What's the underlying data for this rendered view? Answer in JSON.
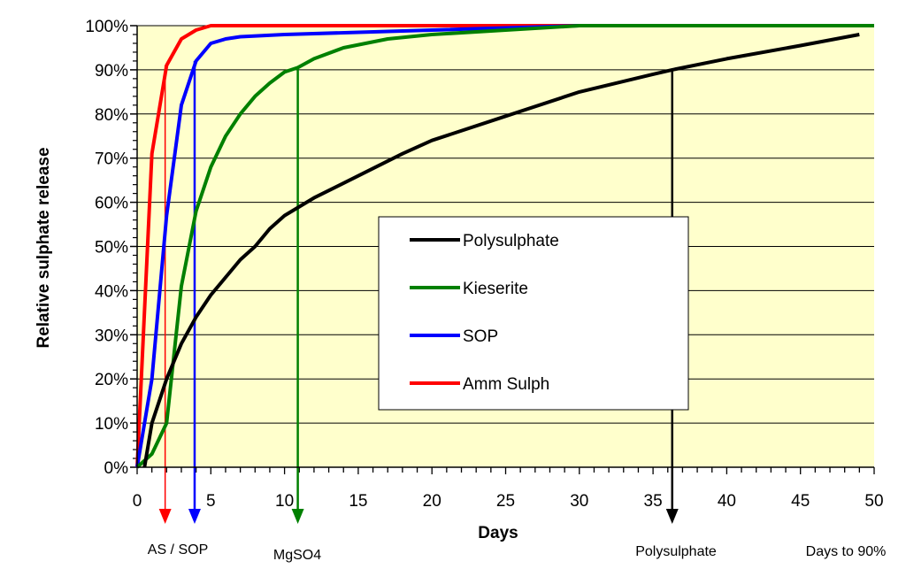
{
  "chart_data": {
    "type": "line",
    "title": "",
    "xlabel": "Days",
    "ylabel": "Relative sulphate release",
    "xlim": [
      0,
      50
    ],
    "ylim": [
      0,
      100
    ],
    "x_ticks": [
      "0",
      "5",
      "10",
      "15",
      "20",
      "25",
      "30",
      "35",
      "40",
      "45",
      "50"
    ],
    "y_ticks": [
      "0%",
      "10%",
      "20%",
      "30%",
      "40%",
      "50%",
      "60%",
      "70%",
      "80%",
      "90%",
      "100%"
    ],
    "grid": "horizontal",
    "background_color": "#FFFFCC",
    "legend_position": "center",
    "series": [
      {
        "name": "Polysulphate",
        "color": "#000000",
        "x": [
          0.5,
          1,
          2,
          3,
          4,
          5,
          6,
          7,
          8,
          9,
          10,
          12,
          15,
          18,
          20,
          25,
          30,
          35,
          36.3,
          40,
          45,
          49
        ],
        "y": [
          0,
          10,
          20,
          28,
          34,
          39,
          43,
          47,
          50,
          54,
          57,
          61,
          66,
          71,
          74,
          79.5,
          85,
          89,
          90,
          92.5,
          95.5,
          98
        ]
      },
      {
        "name": "Kieserite",
        "color": "#008000",
        "x": [
          0,
          1,
          2,
          3,
          4,
          5,
          6,
          7,
          8,
          9,
          10,
          10.9,
          12,
          14,
          17,
          20,
          25,
          30,
          50
        ],
        "y": [
          0,
          3,
          10,
          41,
          58,
          68,
          75,
          80,
          84,
          87,
          89.5,
          90.5,
          92.5,
          95,
          97,
          98,
          99,
          100,
          100
        ]
      },
      {
        "name": "SOP",
        "color": "#0000FF",
        "x": [
          0,
          1,
          2,
          3,
          4,
          5,
          6,
          7,
          10,
          20,
          30,
          50
        ],
        "y": [
          0,
          20,
          57,
          82,
          92,
          96,
          97,
          97.5,
          98,
          99,
          100,
          100
        ]
      },
      {
        "name": "Amm Sulph",
        "color": "#FF0000",
        "x": [
          0,
          1,
          2,
          3,
          4,
          5,
          50
        ],
        "y": [
          0,
          71,
          91,
          97,
          99,
          100,
          100
        ]
      }
    ],
    "annotations": {
      "arrows": [
        {
          "color": "#FF0000",
          "x": 1.9,
          "from_y": 91
        },
        {
          "color": "#0000FF",
          "x": 3.9,
          "from_y": 92
        },
        {
          "color": "#008000",
          "x": 10.9,
          "from_y": 90.5
        },
        {
          "color": "#000000",
          "x": 36.3,
          "from_y": 90
        }
      ],
      "labels": {
        "as_sop": "AS / SOP",
        "mgso4": "MgSO4",
        "polysulphate": "Polysulphate",
        "days_to_90": "Days to 90%"
      }
    }
  }
}
